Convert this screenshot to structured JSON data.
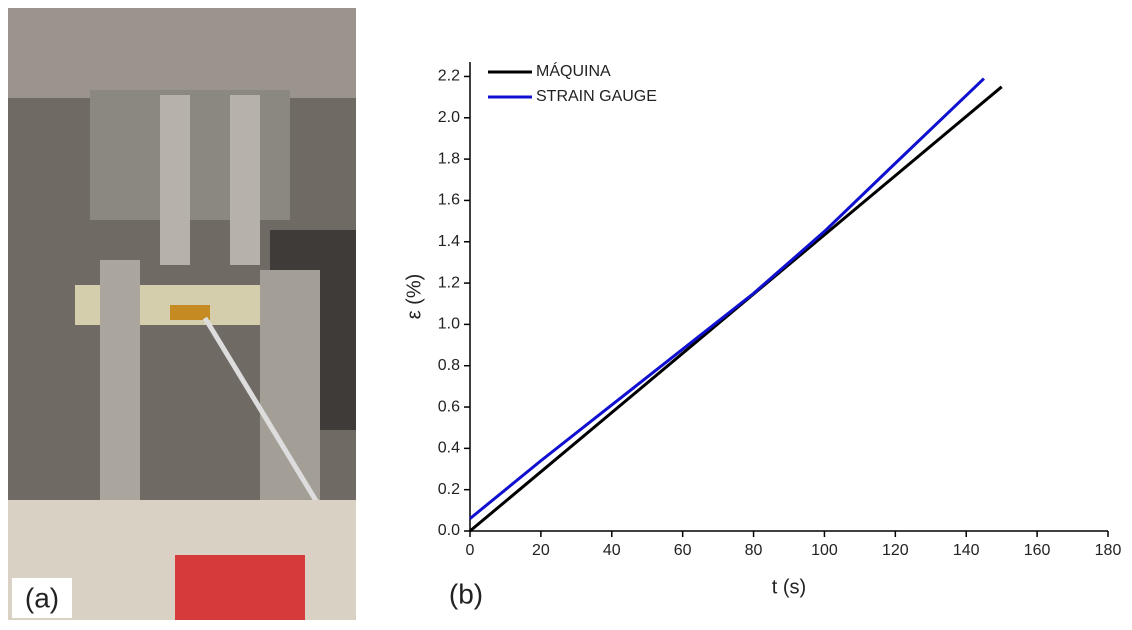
{
  "panel_a": {
    "label": "(a)"
  },
  "chart_data": {
    "type": "line",
    "panel_label": "(b)",
    "xlabel": "t (s)",
    "ylabel": "ε (%)",
    "xlim": [
      0,
      180
    ],
    "xticks": [
      0,
      20,
      40,
      60,
      80,
      100,
      120,
      140,
      160,
      180
    ],
    "ylim": [
      0,
      2.27
    ],
    "yticks": [
      {
        "value": 0,
        "label": "0.0"
      },
      0.2,
      0.4,
      0.6,
      0.8,
      {
        "value": 1,
        "label": "1.0"
      },
      1.2,
      1.4,
      1.6,
      1.8,
      {
        "value": 2,
        "label": "2.0"
      },
      2.2
    ],
    "legend": "upper left",
    "series": [
      {
        "name": "MÁQUINA",
        "color": "#000000",
        "x": [
          0,
          150
        ],
        "values": [
          0,
          2.15
        ]
      },
      {
        "name": "STRAIN GAUGE",
        "color": "#1010d0",
        "x": [
          0,
          20,
          40,
          60,
          80,
          100,
          120,
          145
        ],
        "values": [
          0.06,
          0.34,
          0.61,
          0.88,
          1.15,
          1.45,
          1.78,
          2.19
        ]
      }
    ]
  }
}
